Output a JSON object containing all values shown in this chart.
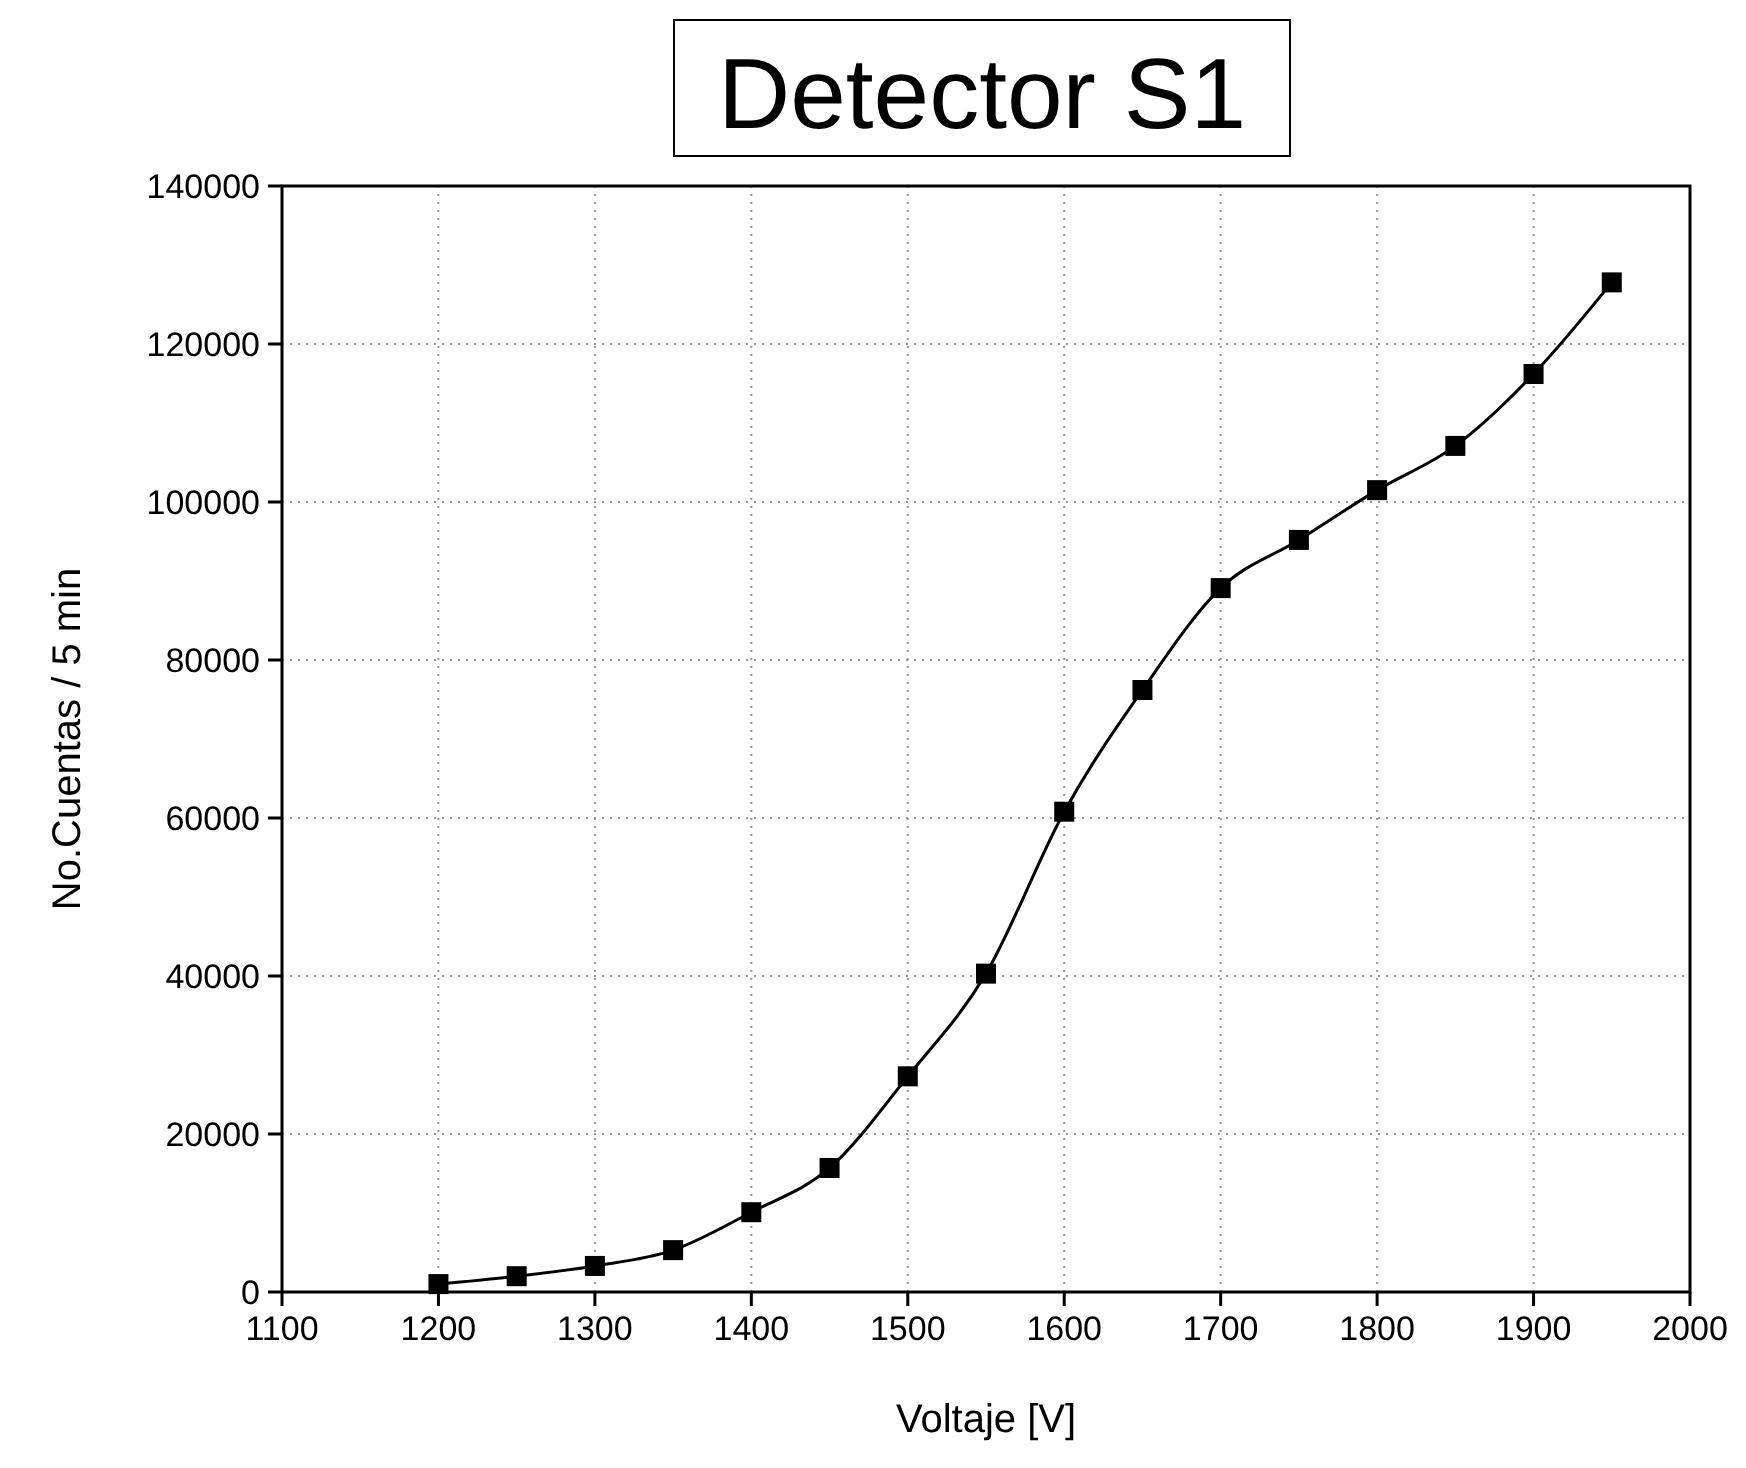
{
  "chart_data": {
    "type": "line",
    "title": "Detector S1",
    "xlabel": "Voltaje [V]",
    "ylabel": "No.Cuentas / 5 min",
    "x": [
      1200,
      1250,
      1300,
      1350,
      1400,
      1450,
      1500,
      1550,
      1600,
      1650,
      1700,
      1750,
      1800,
      1850,
      1900,
      1950
    ],
    "series": [
      {
        "color": "#000000",
        "values": [
          1000,
          2000,
          3300,
          5300,
          10100,
          15700,
          27300,
          40300,
          60800,
          76200,
          89100,
          95200,
          101500,
          107100,
          116200,
          127800
        ]
      }
    ],
    "xlim": [
      1100,
      2000
    ],
    "xticks": [
      1100,
      1200,
      1300,
      1400,
      1500,
      1600,
      1700,
      1800,
      1900,
      2000
    ],
    "ylim": [
      0,
      140000
    ],
    "yticks": [
      0,
      20000,
      40000,
      60000,
      80000,
      100000,
      120000,
      140000
    ],
    "grid": true,
    "marker": "square",
    "line_style": "solid"
  }
}
